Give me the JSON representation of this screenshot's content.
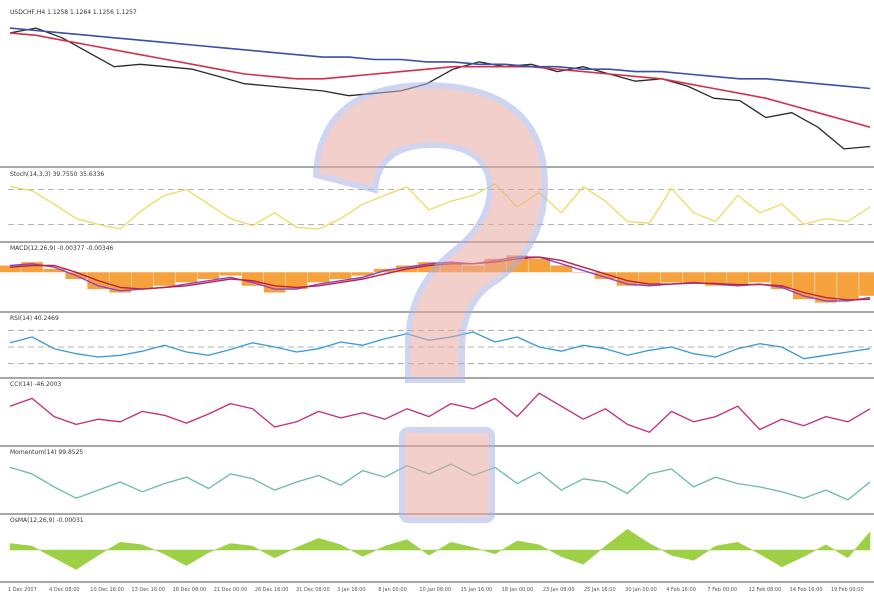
{
  "colors": {
    "price": "#2a2a2a",
    "sma_slow": "#3a4fa8",
    "sma_fast": "#d4304a",
    "stoch": "#eedc62",
    "macd_hist": "#f6a23c",
    "macd_signal": "#8a44c8",
    "macd_line": "#c02040",
    "rsi": "#3a9ad6",
    "cci": "#c42a7a",
    "momentum": "#6abca0",
    "osma": "#9ed046",
    "separator": "#8a8a8a",
    "level": "#9a9a9a",
    "question_mark": "#e8a8a0",
    "question_mark_edge": "#9aa8d8"
  },
  "overlay": {
    "symbol": "question-mark-icon"
  },
  "chart_data": [
    {
      "type": "line",
      "title": "USDCHF,H4 1.1258 1.1264 1.1256 1.1257",
      "series": [
        {
          "values": [
            1.138,
            1.14,
            1.136,
            1.13,
            1.124,
            1.125,
            1.124,
            1.123,
            1.12,
            1.117,
            1.116,
            1.115,
            1.114,
            1.112,
            1.113,
            1.114,
            1.117,
            1.123,
            1.126,
            1.124,
            1.125,
            1.122,
            1.124,
            1.121,
            1.118,
            1.119,
            1.116,
            1.111,
            1.11,
            1.103,
            1.105,
            1.099,
            1.09,
            1.091
          ]
        },
        {
          "values": [
            1.138,
            1.137,
            1.135,
            1.133,
            1.131,
            1.129,
            1.127,
            1.125,
            1.123,
            1.121,
            1.12,
            1.119,
            1.119,
            1.12,
            1.121,
            1.122,
            1.123,
            1.124,
            1.124,
            1.124,
            1.124,
            1.123,
            1.122,
            1.121,
            1.12,
            1.119,
            1.117,
            1.115,
            1.113,
            1.111,
            1.108,
            1.105,
            1.102,
            1.099
          ]
        },
        {
          "values": [
            1.14,
            1.139,
            1.138,
            1.137,
            1.136,
            1.135,
            1.134,
            1.133,
            1.132,
            1.131,
            1.13,
            1.129,
            1.128,
            1.128,
            1.127,
            1.127,
            1.126,
            1.126,
            1.125,
            1.125,
            1.124,
            1.124,
            1.123,
            1.123,
            1.122,
            1.122,
            1.121,
            1.12,
            1.119,
            1.119,
            1.118,
            1.117,
            1.116,
            1.115
          ]
        }
      ],
      "ylim": [
        1.085,
        1.145
      ]
    },
    {
      "type": "line",
      "title": "Stoch(14,3,3) 39.7550 35.6336",
      "series": [
        {
          "values": [
            85,
            78,
            55,
            30,
            20,
            12,
            45,
            70,
            80,
            55,
            30,
            18,
            40,
            15,
            12,
            30,
            55,
            70,
            85,
            45,
            60,
            70,
            90,
            50,
            75,
            40,
            85,
            60,
            25,
            22,
            82,
            40,
            25,
            70,
            40,
            55,
            20,
            30,
            25,
            50
          ]
        }
      ],
      "levels": [
        80,
        20
      ],
      "ylim": [
        0,
        100
      ]
    },
    {
      "type": "bar",
      "title": "MACD(12,26,9) -0.00377 -0.00346",
      "series": [
        {
          "values": [
            2,
            3,
            1,
            -2,
            -5,
            -6,
            -5,
            -4,
            -3,
            -2,
            -1,
            -4,
            -6,
            -5,
            -3,
            -2,
            -1,
            1,
            2,
            3,
            3,
            2,
            4,
            5,
            4,
            2,
            0,
            -2,
            -4,
            -4,
            -3,
            -3,
            -4,
            -4,
            -3,
            -5,
            -8,
            -9,
            -8,
            -7
          ]
        },
        {
          "values": [
            2,
            2.5,
            1.5,
            -1,
            -4,
            -5.5,
            -5,
            -4.5,
            -3.5,
            -2.5,
            -1.5,
            -3,
            -5,
            -5,
            -3.5,
            -2.5,
            -1.5,
            0.5,
            1.5,
            2.5,
            3,
            2.5,
            3.5,
            4.5,
            4.5,
            2.5,
            0.5,
            -1.5,
            -3.5,
            -4,
            -3.5,
            -3,
            -3.5,
            -4,
            -3.5,
            -4.5,
            -7,
            -8.5,
            -8.5,
            -7.5
          ]
        },
        {
          "values": [
            1.5,
            2,
            2,
            0,
            -2.5,
            -4.5,
            -5,
            -4.5,
            -4,
            -3,
            -2,
            -2.5,
            -4,
            -4.5,
            -4,
            -3,
            -2,
            -0.5,
            1,
            2,
            2.5,
            2.5,
            3,
            4,
            4.5,
            3.5,
            1.5,
            -0.5,
            -2.5,
            -3.5,
            -3.5,
            -3.2,
            -3.3,
            -3.7,
            -3.6,
            -4,
            -6,
            -7.5,
            -8.2,
            -8
          ]
        }
      ],
      "ylim": [
        -10,
        6
      ]
    },
    {
      "type": "line",
      "title": "RSI(14) 40.2469",
      "series": [
        {
          "values": [
            55,
            62,
            48,
            42,
            38,
            40,
            45,
            52,
            44,
            40,
            47,
            55,
            50,
            44,
            48,
            56,
            52,
            60,
            66,
            58,
            62,
            68,
            56,
            62,
            50,
            45,
            52,
            48,
            40,
            46,
            50,
            42,
            38,
            48,
            54,
            50,
            36,
            40,
            44,
            48
          ]
        }
      ],
      "levels": [
        70,
        50,
        30
      ],
      "ylim": [
        20,
        80
      ]
    },
    {
      "type": "line",
      "title": "CCI(14) -46.2003",
      "series": [
        {
          "values": [
            60,
            120,
            -20,
            -80,
            -40,
            -60,
            20,
            -10,
            -70,
            0,
            80,
            40,
            -100,
            -60,
            20,
            -30,
            10,
            -40,
            40,
            -20,
            80,
            40,
            120,
            -20,
            160,
            60,
            -40,
            40,
            -80,
            -140,
            20,
            -60,
            -20,
            60,
            -120,
            -40,
            -90,
            -20,
            -60,
            40
          ]
        }
      ],
      "ylim": [
        -200,
        200
      ]
    },
    {
      "type": "line",
      "title": "Momentum(14) 99.8525",
      "series": [
        {
          "values": [
            100.8,
            100.4,
            99.6,
            98.9,
            99.4,
            99.9,
            99.3,
            99.8,
            100.2,
            99.5,
            100.4,
            100.1,
            99.4,
            99.9,
            100.3,
            99.7,
            100.6,
            100.2,
            100.9,
            100.4,
            101.0,
            100.3,
            100.8,
            99.8,
            100.5,
            99.4,
            100.1,
            99.9,
            99.2,
            100.4,
            100.7,
            99.6,
            100.2,
            99.8,
            99.6,
            99.3,
            98.9,
            99.4,
            98.8,
            99.9
          ]
        }
      ],
      "ylim": [
        98.3,
        101.5
      ]
    },
    {
      "type": "area",
      "title": "OsMA(12,26,9) -0.00031",
      "series": [
        {
          "values": [
            0.5,
            0.3,
            -0.6,
            -1.5,
            -0.4,
            0.6,
            0.4,
            -0.3,
            -1.2,
            -0.2,
            0.5,
            0.3,
            -0.6,
            0.2,
            0.9,
            0.4,
            -0.5,
            0.3,
            0.8,
            -0.4,
            0.6,
            0.2,
            -0.3,
            0.7,
            0.4,
            -0.5,
            -1.1,
            0.3,
            1.6,
            0.5,
            -0.4,
            -0.8,
            0.3,
            0.6,
            -0.3,
            -1.3,
            -0.5,
            0.4,
            -0.6,
            1.4
          ]
        }
      ],
      "ylim": [
        -2,
        2
      ]
    }
  ],
  "time_axis": {
    "labels": [
      "1 Dec 2007",
      "4 Dec 08:00",
      "10 Dec 16:00",
      "13 Dec 16:00",
      "18 Dec 08:00",
      "21 Dec 00:00",
      "26 Dec 16:00",
      "31 Dec 08:00",
      "3 Jan 16:00",
      "8 Jan 00:00",
      "10 Jan 08:00",
      "15 Jan 16:00",
      "18 Jan 00:00",
      "23 Jan 08:00",
      "25 Jan 16:00",
      "30 Jan 00:00",
      "4 Feb 16:00",
      "7 Feb 00:00",
      "12 Feb 08:00",
      "14 Feb 16:00",
      "19 Feb 00:00"
    ]
  }
}
